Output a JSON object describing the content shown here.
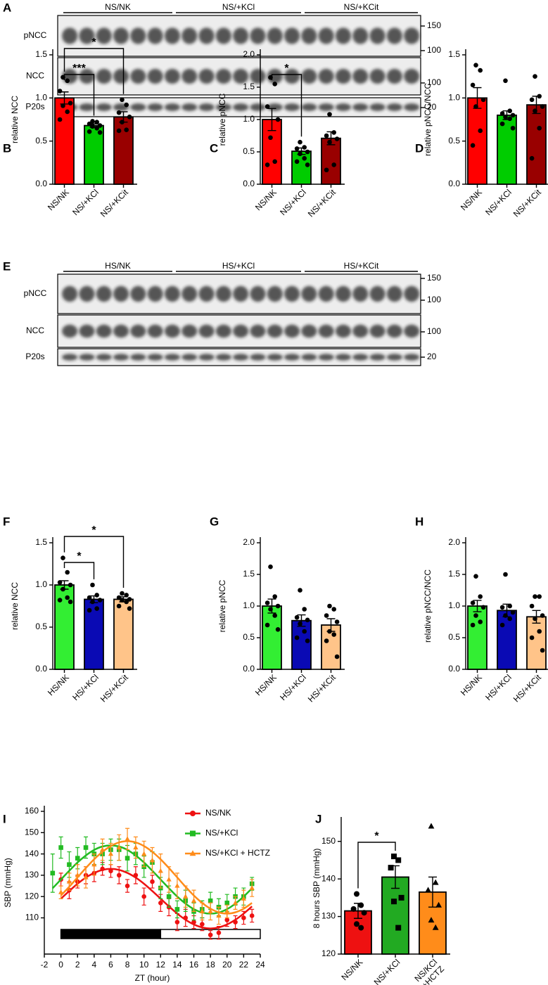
{
  "blots": [
    {
      "letter": "A",
      "groups": [
        "NS/NK",
        "NS/+KCl",
        "NS/+KCit"
      ],
      "rows": [
        {
          "label": "pNCC",
          "markers": [
            150,
            100
          ]
        },
        {
          "label": "NCC",
          "markers": [
            100
          ]
        },
        {
          "label": "P20s",
          "markers": [
            20
          ]
        }
      ]
    },
    {
      "letter": "E",
      "groups": [
        "HS/NK",
        "HS/+KCl",
        "HS/+KCit"
      ],
      "rows": [
        {
          "label": "pNCC",
          "markers": [
            150,
            100
          ]
        },
        {
          "label": "NCC",
          "markers": [
            100
          ]
        },
        {
          "label": "P20s",
          "markers": [
            20
          ]
        }
      ]
    }
  ],
  "chart_data": [
    {
      "letter": "B",
      "type": "bar",
      "ylabel": "relative NCC",
      "categories": [
        "NS/NK",
        "NS/+KCl",
        "NS/+KCit"
      ],
      "colors": [
        "#ff0000",
        "#00cc00",
        "#990000"
      ],
      "values": [
        1.0,
        0.68,
        0.78
      ],
      "errors": [
        0.07,
        0.02,
        0.06
      ],
      "points": [
        [
          1.24,
          1.2,
          1.08,
          0.94,
          0.91,
          0.84,
          0.75
        ],
        [
          0.73,
          0.72,
          0.7,
          0.68,
          0.67,
          0.65,
          0.61,
          0.6
        ],
        [
          0.98,
          0.92,
          0.83,
          0.78,
          0.72,
          0.63,
          0.62
        ]
      ],
      "ylim": [
        0,
        1.5
      ],
      "yticks": [
        {
          "value": 0,
          "label": "0.0"
        },
        0.5,
        {
          "value": 1,
          "label": "1.0"
        },
        1.5
      ],
      "significance": [
        {
          "from": 0,
          "to": 1,
          "label": "***"
        },
        {
          "from": 0,
          "to": 2,
          "label": "*"
        }
      ]
    },
    {
      "letter": "C",
      "type": "bar",
      "ylabel": "relative pNCC",
      "categories": [
        "NS/NK",
        "NS/+KCl",
        "NS/+KCit"
      ],
      "colors": [
        "#ff0000",
        "#00cc00",
        "#990000"
      ],
      "values": [
        1.0,
        0.51,
        0.71
      ],
      "errors": [
        0.17,
        0.05,
        0.1
      ],
      "points": [
        [
          1.65,
          1.55,
          1.2,
          1.0,
          0.72,
          0.35,
          0.3
        ],
        [
          0.65,
          0.57,
          0.55,
          0.5,
          0.47,
          0.4,
          0.35,
          0.3
        ],
        [
          1.08,
          0.8,
          0.75,
          0.7,
          0.65,
          0.3,
          0.22
        ]
      ],
      "ylim": [
        0,
        2
      ],
      "yticks": [
        {
          "value": 0,
          "label": "0.0"
        },
        0.5,
        {
          "value": 1,
          "label": "1.0"
        },
        1.5,
        {
          "value": 2,
          "label": "2.0"
        }
      ],
      "significance": [
        {
          "from": 0,
          "to": 1,
          "label": "*"
        }
      ]
    },
    {
      "letter": "D",
      "type": "bar",
      "ylabel": "relative pNCC/NCC",
      "categories": [
        "NS/NK",
        "NS/+KCl",
        "NS/+KCit"
      ],
      "colors": [
        "#ff0000",
        "#00cc00",
        "#990000"
      ],
      "values": [
        1.0,
        0.8,
        0.92
      ],
      "errors": [
        0.12,
        0.05,
        0.1
      ],
      "points": [
        [
          1.38,
          1.32,
          1.15,
          0.98,
          0.9,
          0.62,
          0.45
        ],
        [
          1.2,
          0.85,
          0.82,
          0.8,
          0.78,
          0.76,
          0.7,
          0.65
        ],
        [
          1.25,
          1.02,
          0.98,
          0.9,
          0.85,
          0.65,
          0.3
        ]
      ],
      "ylim": [
        0,
        1.5
      ],
      "yticks": [
        {
          "value": 0,
          "label": "0.0"
        },
        0.5,
        {
          "value": 1,
          "label": "1.0"
        },
        1.5
      ]
    },
    {
      "letter": "F",
      "type": "bar",
      "ylabel": "relative NCC",
      "categories": [
        "HS/NK",
        "HS/+KCl",
        "HS/+KCit"
      ],
      "colors": [
        "#33ee33",
        "#0a0ab4",
        "#ffc489"
      ],
      "values": [
        1.0,
        0.83,
        0.83
      ],
      "errors": [
        0.05,
        0.04,
        0.03
      ],
      "points": [
        [
          1.32,
          1.15,
          1.03,
          1.0,
          0.95,
          0.85,
          0.82,
          0.8
        ],
        [
          1.0,
          0.88,
          0.85,
          0.82,
          0.8,
          0.72,
          0.7
        ],
        [
          0.9,
          0.88,
          0.85,
          0.83,
          0.82,
          0.8,
          0.75,
          0.72
        ]
      ],
      "ylim": [
        0,
        1.5
      ],
      "yticks": [
        {
          "value": 0,
          "label": "0.0"
        },
        0.5,
        {
          "value": 1,
          "label": "1.0"
        },
        1.5
      ],
      "significance": [
        {
          "from": 0,
          "to": 1,
          "label": "*"
        },
        {
          "from": 0,
          "to": 2,
          "label": "*"
        }
      ]
    },
    {
      "letter": "G",
      "type": "bar",
      "ylabel": "relative pNCC",
      "categories": [
        "HS/NK",
        "HS/+KCl",
        "HS/+KCit"
      ],
      "colors": [
        "#33ee33",
        "#0a0ab4",
        "#ffc489"
      ],
      "values": [
        1.0,
        0.77,
        0.7
      ],
      "errors": [
        0.11,
        0.09,
        0.1
      ],
      "points": [
        [
          1.62,
          1.15,
          1.05,
          1.0,
          0.95,
          0.85,
          0.7,
          0.63
        ],
        [
          1.25,
          0.95,
          0.82,
          0.78,
          0.72,
          0.6,
          0.5,
          0.45
        ],
        [
          1.0,
          0.95,
          0.85,
          0.75,
          0.6,
          0.55,
          0.45,
          0.2
        ]
      ],
      "ylim": [
        0,
        2
      ],
      "yticks": [
        {
          "value": 0,
          "label": "0.0"
        },
        0.5,
        {
          "value": 1,
          "label": "1.0"
        },
        1.5,
        {
          "value": 2,
          "label": "2.0"
        }
      ]
    },
    {
      "letter": "H",
      "type": "bar",
      "ylabel": "relative pNCC/NCC",
      "categories": [
        "HS/NK",
        "HS/+KCl",
        "HS/+KCit"
      ],
      "colors": [
        "#33ee33",
        "#0a0ab4",
        "#ffc489"
      ],
      "values": [
        1.0,
        0.93,
        0.83
      ],
      "errors": [
        0.09,
        0.1,
        0.1
      ],
      "points": [
        [
          1.47,
          1.15,
          1.05,
          0.98,
          0.85,
          0.75,
          0.7
        ],
        [
          1.5,
          1.0,
          0.98,
          0.9,
          0.85,
          0.8,
          0.7
        ],
        [
          1.15,
          1.15,
          1.0,
          0.85,
          0.8,
          0.6,
          0.5,
          0.3
        ]
      ],
      "ylim": [
        0,
        2
      ],
      "yticks": [
        {
          "value": 0,
          "label": "0.0"
        },
        0.5,
        {
          "value": 1,
          "label": "1.0"
        },
        1.5,
        {
          "value": 2,
          "label": "2.0"
        }
      ]
    },
    {
      "letter": "I",
      "type": "line",
      "ylabel": "SBP (mmHg)",
      "xlabel": "ZT (hour)",
      "legend": "upper right",
      "x": [
        -1,
        0,
        1,
        2,
        3,
        4,
        5,
        6,
        7,
        8,
        9,
        10,
        11,
        12,
        13,
        14,
        15,
        16,
        17,
        18,
        19,
        20,
        21,
        22,
        23
      ],
      "xlim": [
        -2,
        24
      ],
      "xticks": [
        -2,
        0,
        2,
        4,
        6,
        8,
        10,
        12,
        14,
        16,
        18,
        20,
        22,
        24
      ],
      "ylim": [
        93,
        160
      ],
      "yticks": [
        110,
        120,
        130,
        140,
        150,
        160
      ],
      "light_dark": {
        "dark": [
          0,
          12
        ],
        "light": [
          12,
          24
        ]
      },
      "series": [
        {
          "name": "NS/NK",
          "color": "#ee1111",
          "marker": "circle",
          "values": [
            null,
            128,
            123,
            127,
            130,
            131,
            133,
            132,
            130,
            125,
            130,
            120,
            127,
            117,
            115,
            108,
            110,
            108,
            107,
            102,
            103,
            109,
            108,
            110,
            111
          ],
          "errors": [
            null,
            3,
            4,
            3,
            4,
            4,
            3,
            3,
            4,
            3,
            4,
            4,
            3,
            4,
            4,
            4,
            4,
            3,
            3,
            2,
            3,
            3,
            3,
            3,
            3
          ],
          "fit_values": [
            null,
            119,
            122.6,
            126,
            128.9,
            131.1,
            132.5,
            133,
            132.5,
            131.1,
            128.9,
            126,
            122.6,
            119,
            115.4,
            112,
            109.1,
            106.9,
            105.5,
            105,
            105.5,
            106.9,
            109.1,
            112,
            115.4
          ]
        },
        {
          "name": "NS/+KCl",
          "color": "#22bb22",
          "marker": "square",
          "values": [
            131,
            143,
            135,
            138,
            143,
            140,
            140,
            142,
            142,
            138,
            140,
            134,
            136,
            124,
            120,
            114,
            118,
            113,
            114,
            118,
            115,
            117,
            120,
            120,
            126
          ],
          "errors": [
            9,
            5,
            6,
            5,
            5,
            5,
            5,
            5,
            5,
            6,
            5,
            5,
            5,
            5,
            5,
            4,
            5,
            4,
            4,
            4,
            4,
            4,
            4,
            4,
            3
          ],
          "fit_values": [
            123.9,
            128,
            132.1,
            136,
            139.3,
            141.9,
            143.5,
            144,
            143.5,
            141.9,
            139.3,
            136,
            132.1,
            128,
            123.9,
            120,
            116.7,
            114.1,
            112.5,
            112,
            112.5,
            114.1,
            116.7,
            120,
            123.9
          ]
        },
        {
          "name": "NS/+KCl + HCTZ",
          "color": "#ff8c1a",
          "marker": "triangle",
          "values": [
            null,
            122,
            127,
            130,
            129,
            135,
            142,
            140,
            143,
            147,
            143,
            140,
            137,
            132,
            128,
            125,
            120,
            118,
            113,
            113,
            111,
            113,
            117,
            119,
            124
          ],
          "errors": [
            null,
            3,
            4,
            5,
            5,
            5,
            5,
            5,
            6,
            5,
            5,
            6,
            6,
            8,
            6,
            6,
            5,
            5,
            4,
            4,
            4,
            3,
            3,
            4,
            4
          ],
          "fit_values": [
            null,
            120.5,
            124.6,
            129,
            133.4,
            137.5,
            141,
            143.7,
            145.4,
            146,
            145.4,
            143.7,
            141,
            137.5,
            133.4,
            129,
            124.6,
            120.5,
            117,
            114.3,
            112.6,
            112,
            112.6,
            114.3,
            117
          ]
        }
      ]
    },
    {
      "letter": "J",
      "type": "bar",
      "ylabel": "8 hours SBP (mmHg)",
      "categories": [
        "NS/NK",
        "NS/+KCl",
        "NS/KCl\n+HCTZ"
      ],
      "colors": [
        "#ee1111",
        "#22aa22",
        "#ff8c1a"
      ],
      "markers": [
        "circle",
        "square",
        "triangle"
      ],
      "values": [
        131.5,
        140.5,
        136.5
      ],
      "errors": [
        2,
        3,
        4
      ],
      "points": [
        [
          136,
          133,
          132,
          131,
          128,
          127
        ],
        [
          146,
          145,
          143,
          135,
          134,
          127
        ],
        [
          154,
          139,
          137,
          133,
          129,
          127
        ]
      ],
      "ylim": [
        120,
        155
      ],
      "yticks": [
        120,
        130,
        140,
        150
      ],
      "significance": [
        {
          "from": 0,
          "to": 1,
          "label": "*"
        }
      ]
    }
  ]
}
